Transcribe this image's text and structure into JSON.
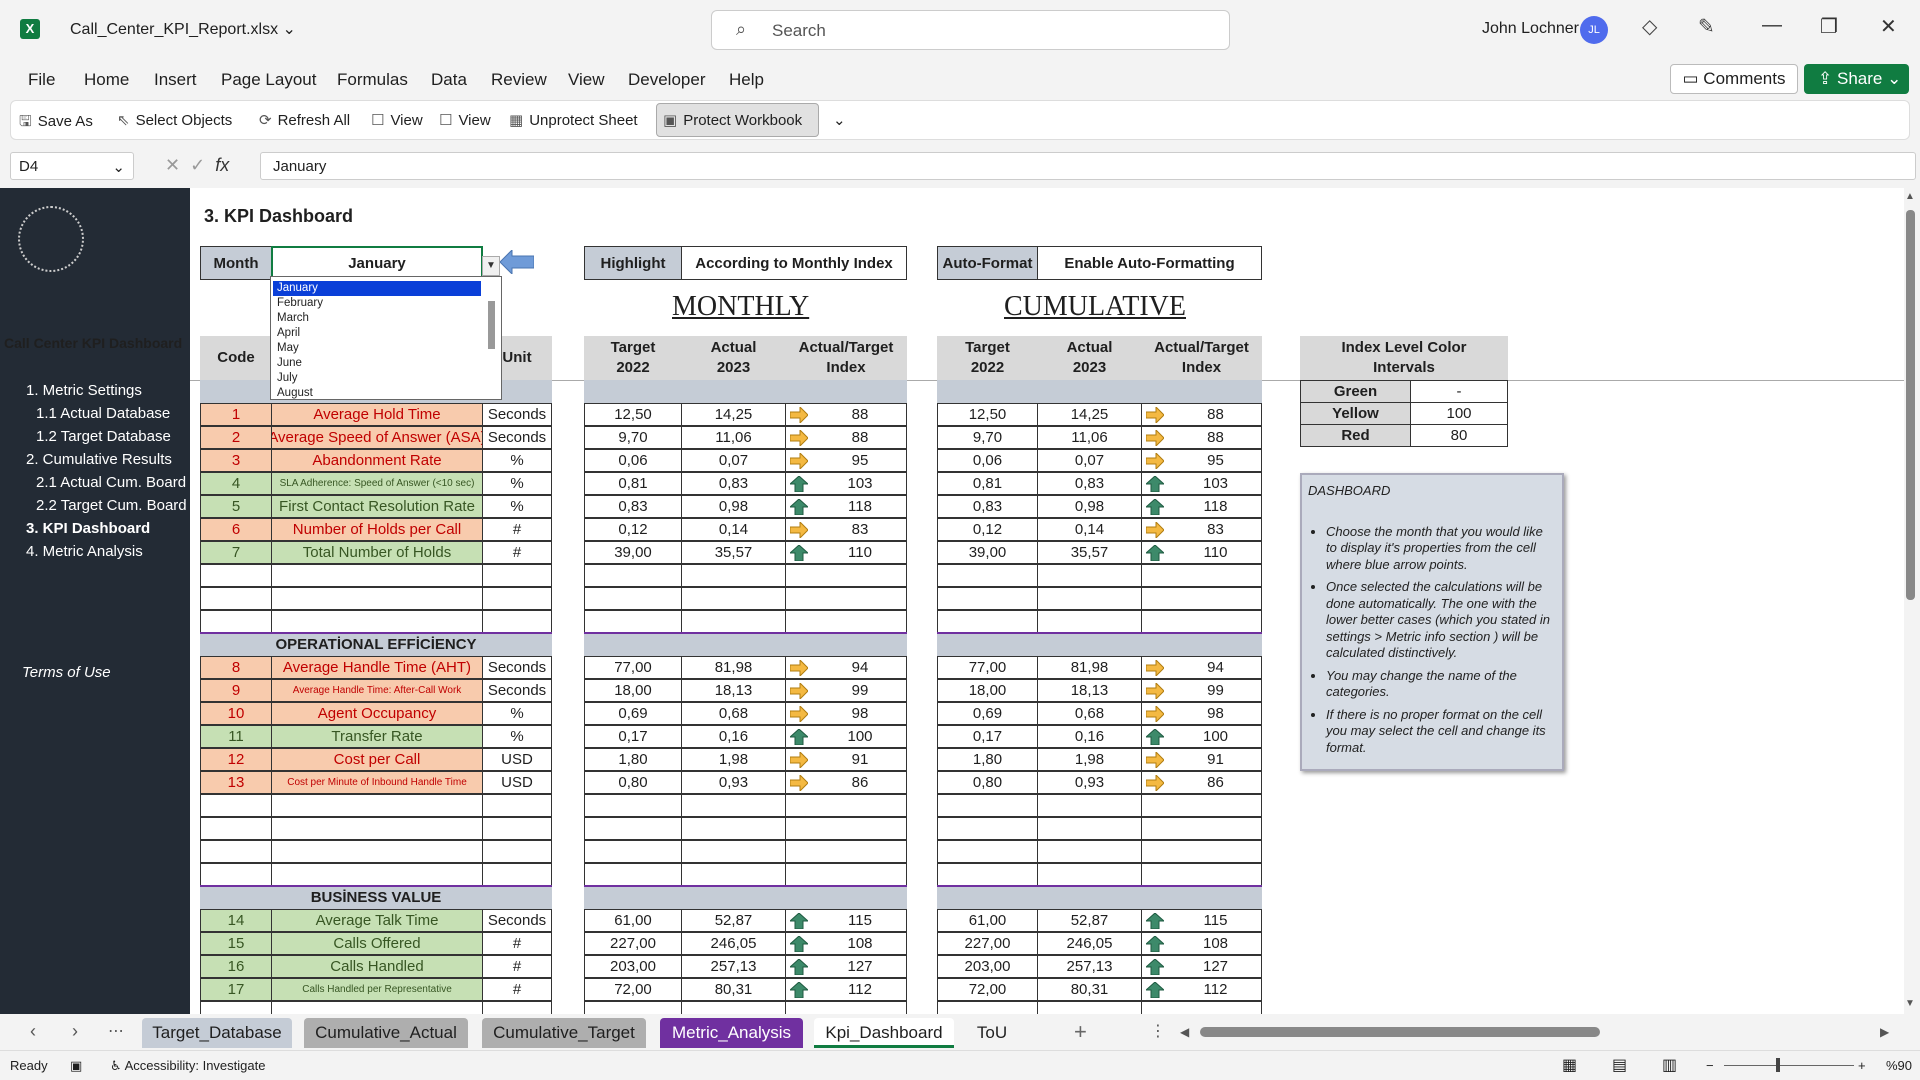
{
  "titlebar": {
    "filename": "Call_Center_KPI_Report.xlsx",
    "search_placeholder": "Search",
    "user_name": "John Lochner",
    "user_initials": "JL"
  },
  "menu": [
    "File",
    "Home",
    "Insert",
    "Page Layout",
    "Formulas",
    "Data",
    "Review",
    "View",
    "Developer",
    "Help"
  ],
  "buttons": {
    "comments": "Comments",
    "share": "Share"
  },
  "qat": {
    "save_as": "Save As",
    "select_objects": "Select Objects",
    "refresh_all": "Refresh All",
    "view1": "View",
    "view2": "View",
    "unprotect": "Unprotect Sheet",
    "protect": "Protect Workbook"
  },
  "formula_bar": {
    "cell_ref": "D4",
    "value": "January"
  },
  "nav": {
    "title": "Call Center KPI Dashboard",
    "items": [
      "1. Metric Settings",
      "1.1 Actual Database",
      "1.2 Target Database",
      "2. Cumulative Results",
      "2.1 Actual Cum. Board",
      "2.2 Target Cum. Board",
      "3. KPI Dashboard",
      "4. Metric Analysis"
    ],
    "terms": "Terms of Use"
  },
  "dashboard": {
    "title": "3. KPI Dashboard",
    "month_label": "Month",
    "month_value": "January",
    "highlight_label": "Highlight",
    "highlight_value": "According to Monthly Index",
    "autoformat_label": "Auto-Format",
    "autoformat_value": "Enable Auto-Formatting",
    "monthly_title": "MONTHLY",
    "cumulative_title": "CUMULATIVE",
    "headers": {
      "code": "Code",
      "unit": "Unit",
      "target": "Target 2022",
      "actual": "Actual 2023",
      "index": "Actual/Target Index"
    },
    "sections": [
      "OPERATİONAL EFFİCİENCY",
      "BUSİNESS VALUE"
    ],
    "months": [
      "January",
      "February",
      "March",
      "April",
      "May",
      "June",
      "July",
      "August"
    ],
    "index_intervals": {
      "title": "Index Level Color Intervals",
      "rows": [
        {
          "name": "Green",
          "value": "-"
        },
        {
          "name": "Yellow",
          "value": "100"
        },
        {
          "name": "Red",
          "value": "80"
        }
      ]
    },
    "colors": {
      "red_fill": "#f8cbad",
      "green_fill": "#c6e0b4",
      "arrow_yellow": "#f4b942",
      "arrow_green": "#3d8a6a"
    },
    "group1": [
      {
        "code": "1",
        "name": "Average Hold Time",
        "unit": "Seconds",
        "target": "12,50",
        "actual": "14,25",
        "index": "88",
        "color": "red",
        "arrow": "right",
        "small": false
      },
      {
        "code": "2",
        "name": "Average Speed of Answer (ASA)",
        "unit": "Seconds",
        "target": "9,70",
        "actual": "11,06",
        "index": "88",
        "color": "red",
        "arrow": "right",
        "small": false
      },
      {
        "code": "3",
        "name": "Abandonment Rate",
        "unit": "%",
        "target": "0,06",
        "actual": "0,07",
        "index": "95",
        "color": "red",
        "arrow": "right",
        "small": false
      },
      {
        "code": "4",
        "name": "SLA Adherence: Speed of Answer (<10 sec)",
        "unit": "%",
        "target": "0,81",
        "actual": "0,83",
        "index": "103",
        "color": "green",
        "arrow": "up",
        "small": true
      },
      {
        "code": "5",
        "name": "First Contact Resolution Rate",
        "unit": "%",
        "target": "0,83",
        "actual": "0,98",
        "index": "118",
        "color": "green",
        "arrow": "up",
        "small": false
      },
      {
        "code": "6",
        "name": "Number of Holds per Call",
        "unit": "#",
        "target": "0,12",
        "actual": "0,14",
        "index": "83",
        "color": "red",
        "arrow": "right",
        "small": false
      },
      {
        "code": "7",
        "name": "Total Number of Holds",
        "unit": "#",
        "target": "39,00",
        "actual": "35,57",
        "index": "110",
        "color": "green",
        "arrow": "up",
        "small": false
      }
    ],
    "group2": [
      {
        "code": "8",
        "name": "Average Handle Time (AHT)",
        "unit": "Seconds",
        "target": "77,00",
        "actual": "81,98",
        "index": "94",
        "color": "red",
        "arrow": "right",
        "small": false
      },
      {
        "code": "9",
        "name": "Average Handle Time: After-Call Work",
        "unit": "Seconds",
        "target": "18,00",
        "actual": "18,13",
        "index": "99",
        "color": "red",
        "arrow": "right",
        "small": true
      },
      {
        "code": "10",
        "name": "Agent Occupancy",
        "unit": "%",
        "target": "0,69",
        "actual": "0,68",
        "index": "98",
        "color": "red",
        "arrow": "right",
        "small": false
      },
      {
        "code": "11",
        "name": "Transfer Rate",
        "unit": "%",
        "target": "0,17",
        "actual": "0,16",
        "index": "100",
        "color": "green",
        "arrow": "up",
        "small": false
      },
      {
        "code": "12",
        "name": "Cost per Call",
        "unit": "USD",
        "target": "1,80",
        "actual": "1,98",
        "index": "91",
        "color": "red",
        "arrow": "right",
        "small": false
      },
      {
        "code": "13",
        "name": "Cost per Minute of Inbound Handle Time",
        "unit": "USD",
        "target": "0,80",
        "actual": "0,93",
        "index": "86",
        "color": "red",
        "arrow": "right",
        "small": true
      }
    ],
    "group3": [
      {
        "code": "14",
        "name": "Average Talk Time",
        "unit": "Seconds",
        "target": "61,00",
        "actual": "52,87",
        "index": "115",
        "color": "green",
        "arrow": "up",
        "small": false
      },
      {
        "code": "15",
        "name": "Calls Offered",
        "unit": "#",
        "target": "227,00",
        "actual": "246,05",
        "index": "108",
        "color": "green",
        "arrow": "up",
        "small": false
      },
      {
        "code": "16",
        "name": "Calls Handled",
        "unit": "#",
        "target": "203,00",
        "actual": "257,13",
        "index": "127",
        "color": "green",
        "arrow": "up",
        "small": false
      },
      {
        "code": "17",
        "name": "Calls Handled per Representative",
        "unit": "#",
        "target": "72,00",
        "actual": "80,31",
        "index": "112",
        "color": "green",
        "arrow": "up",
        "small": true
      }
    ],
    "panel": {
      "title": "DASHBOARD",
      "bullets": [
        "Choose the month that you would like to display it's properties from the cell where blue arrow points.",
        "Once selected the calculations will be done automatically. The one with the lower better cases (which you stated in settings > Metric info section ) will be calculated distinctively.",
        "You may change the name of the categories.",
        "If there is no proper format on the cell you may select the cell and change its format."
      ]
    }
  },
  "tabs": [
    {
      "name": "Target_Database",
      "bg": "#c5ccd6",
      "fg": "#1f1f1f"
    },
    {
      "name": "Cumulative_Actual",
      "bg": "#aeaeae",
      "fg": "#1f1f1f"
    },
    {
      "name": "Cumulative_Target",
      "bg": "#aeaeae",
      "fg": "#1f1f1f"
    },
    {
      "name": "Metric_Analysis",
      "bg": "#7030a0",
      "fg": "#ffffff"
    },
    {
      "name": "Kpi_Dashboard",
      "bg": "#ffffff",
      "fg": "#1f1f1f"
    },
    {
      "name": "ToU",
      "bg": "#f3f3f3",
      "fg": "#1f1f1f"
    }
  ],
  "status": {
    "ready": "Ready",
    "accessibility": "Accessibility: Investigate",
    "zoom": "%90"
  }
}
